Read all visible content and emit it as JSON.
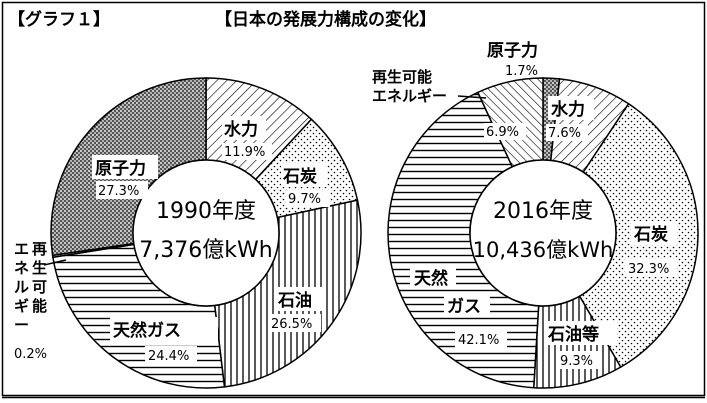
{
  "header": {
    "graph_label": "【グラフ１】",
    "title": "【日本の発展力構成の変化】"
  },
  "chart_data": [
    {
      "type": "pie",
      "center_label": {
        "year": "1990年度",
        "total": "7,376億kWh"
      },
      "slices": [
        {
          "name": "水力",
          "value": 11.9,
          "value_label": "11.9%",
          "pattern": "diag-right"
        },
        {
          "name": "石炭",
          "value": 9.7,
          "value_label": "9.7%",
          "pattern": "dots"
        },
        {
          "name": "石油",
          "value": 26.5,
          "value_label": "26.5%",
          "pattern": "vertical"
        },
        {
          "name": "天然ガス",
          "value": 24.4,
          "value_label": "24.4%",
          "pattern": "horizontal"
        },
        {
          "name": "再生可能エネルギー",
          "value": 0.2,
          "value_label": "0.2%",
          "pattern": "diag-left"
        },
        {
          "name": "原子力",
          "value": 27.3,
          "value_label": "27.3%",
          "pattern": "dense-dots"
        }
      ]
    },
    {
      "type": "pie",
      "center_label": {
        "year": "2016年度",
        "total": "10,436億kWh"
      },
      "slices": [
        {
          "name": "原子力",
          "value": 1.7,
          "value_label": "1.7%",
          "pattern": "dense-dots"
        },
        {
          "name": "水力",
          "value": 7.6,
          "value_label": "7.6%",
          "pattern": "diag-right"
        },
        {
          "name": "石炭",
          "value": 32.3,
          "value_label": "32.3%",
          "pattern": "dots"
        },
        {
          "name": "石油等",
          "value": 9.3,
          "value_label": "9.3%",
          "pattern": "vertical"
        },
        {
          "name": "天然ガス",
          "value": 42.1,
          "value_label": "42.1%",
          "pattern": "horizontal"
        },
        {
          "name": "再生可能エネルギー",
          "value": 6.9,
          "value_label": "6.9%",
          "pattern": "diag-left"
        }
      ]
    }
  ],
  "labels": {
    "renew_1990_lines": [
      "再",
      "生",
      "可",
      "能"
    ],
    "renew_1990_left": [
      "エ",
      "ネ",
      "ル",
      "ギ",
      "ー"
    ],
    "renew_2016_line1": "再生可能",
    "renew_2016_line2": "エネルギー",
    "gas_2016_line1": "天然",
    "gas_2016_line2": "ガス"
  }
}
